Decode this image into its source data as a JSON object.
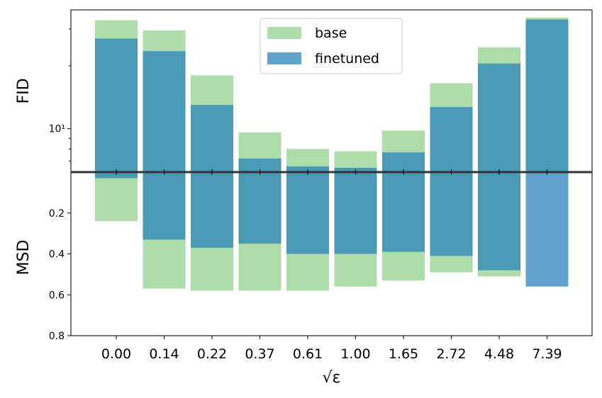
{
  "chart_data": {
    "type": "bar",
    "layout": "two stacked panels sharing x axis",
    "categories": [
      "0.00",
      "0.14",
      "0.22",
      "0.37",
      "0.61",
      "1.00",
      "1.65",
      "2.72",
      "4.48",
      "7.39"
    ],
    "xlabel": "√ε",
    "legend": {
      "position": "top-center",
      "entries": [
        "base",
        "finetuned"
      ]
    },
    "colors": {
      "base": "#98d594",
      "finetuned": "#2b83ba",
      "separator": "#333333"
    },
    "panels": [
      {
        "ylabel": "FID",
        "scale": "log",
        "ylim": [
          6.2,
          37
        ],
        "yticks": [
          10
        ],
        "ytick_labels": [
          "10¹"
        ],
        "series": [
          {
            "name": "base",
            "values": [
              33.0,
              29.5,
              18.0,
              9.6,
              8.0,
              7.8,
              9.8,
              16.5,
              24.5,
              34.0
            ]
          },
          {
            "name": "finetuned",
            "values": [
              27.0,
              23.5,
              13.0,
              7.2,
              6.6,
              6.5,
              7.7,
              12.7,
              20.5,
              33.3
            ]
          }
        ]
      },
      {
        "ylabel": "MSD",
        "scale": "linear",
        "inverted": true,
        "ylim": [
          0.0,
          0.8
        ],
        "yticks": [
          0.2,
          0.4,
          0.6,
          0.8
        ],
        "ytick_labels": [
          "0.2",
          "0.4",
          "0.6",
          "0.8"
        ],
        "series": [
          {
            "name": "base",
            "values": [
              0.24,
              0.57,
              0.58,
              0.58,
              0.58,
              0.56,
              0.53,
              0.49,
              0.51,
              0.0
            ]
          },
          {
            "name": "finetuned",
            "values": [
              0.03,
              0.33,
              0.37,
              0.35,
              0.4,
              0.4,
              0.39,
              0.41,
              0.48,
              0.56
            ]
          }
        ]
      }
    ]
  }
}
